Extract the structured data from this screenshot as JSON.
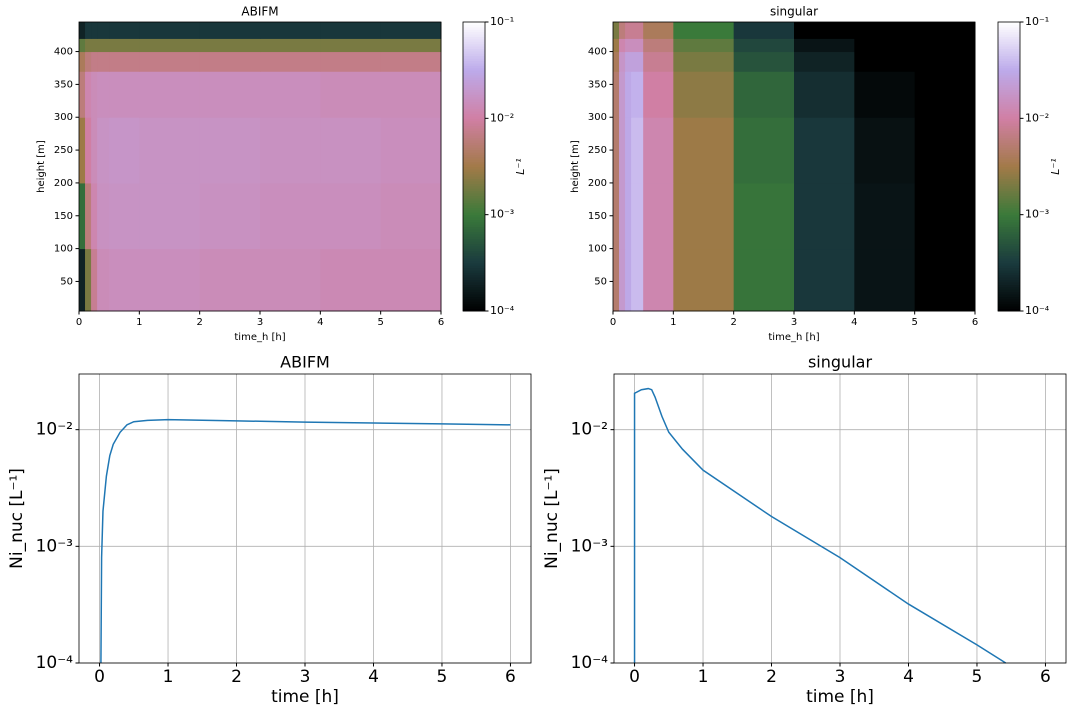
{
  "chart_data": [
    {
      "type": "heatmap",
      "title": "ABIFM",
      "x_label": "time_h [h]",
      "y_label": "height [m]",
      "colorbar_label": "L⁻¹",
      "xlim": [
        0,
        6
      ],
      "xticks": [
        0,
        1,
        2,
        3,
        4,
        5,
        6
      ],
      "ylim": [
        5,
        445
      ],
      "yticks": [
        50,
        100,
        150,
        200,
        250,
        300,
        350,
        400
      ],
      "x_edges": [
        0,
        0.1,
        0.2,
        0.3,
        0.5,
        1,
        2,
        3,
        4,
        5,
        6
      ],
      "y_edges": [
        5,
        100,
        200,
        300,
        370,
        400,
        420,
        445
      ],
      "values": [
        [
          0.0002,
          0.002,
          0.008,
          0.014,
          0.015,
          0.015,
          0.014,
          0.014,
          0.013,
          0.013
        ],
        [
          0.0008,
          0.006,
          0.012,
          0.016,
          0.017,
          0.017,
          0.016,
          0.015,
          0.015,
          0.014
        ],
        [
          0.003,
          0.01,
          0.014,
          0.017,
          0.018,
          0.017,
          0.017,
          0.016,
          0.016,
          0.015
        ],
        [
          0.006,
          0.012,
          0.014,
          0.015,
          0.015,
          0.015,
          0.015,
          0.015,
          0.014,
          0.014
        ],
        [
          0.004,
          0.006,
          0.007,
          0.007,
          0.007,
          0.007,
          0.007,
          0.007,
          0.007,
          0.007
        ],
        [
          0.0015,
          0.002,
          0.002,
          0.002,
          0.002,
          0.002,
          0.002,
          0.002,
          0.002,
          0.002
        ],
        [
          0.0002,
          0.0003,
          0.0003,
          0.0003,
          0.0003,
          0.0003,
          0.0003,
          0.0003,
          0.0003,
          0.0003
        ]
      ],
      "zlim": [
        0.0001,
        0.1
      ],
      "log_color": true,
      "zticks": [
        {
          "value": 0.0001,
          "label": "10⁻⁴"
        },
        {
          "value": 0.001,
          "label": "10⁻³"
        },
        {
          "value": 0.01,
          "label": "10⁻²"
        },
        {
          "value": 0.1,
          "label": "10⁻¹"
        }
      ],
      "colormap": [
        "#000000",
        "#1a3a3e",
        "#3a7a3a",
        "#a27a48",
        "#d07fa4",
        "#bcaaea",
        "#ffffff"
      ]
    },
    {
      "type": "heatmap",
      "title": "singular",
      "x_label": "time_h [h]",
      "y_label": "height [m]",
      "colorbar_label": "L⁻¹",
      "xlim": [
        0,
        6
      ],
      "xticks": [
        0,
        1,
        2,
        3,
        4,
        5,
        6
      ],
      "ylim": [
        5,
        445
      ],
      "yticks": [
        50,
        100,
        150,
        200,
        250,
        300,
        350,
        400
      ],
      "x_edges": [
        0,
        0.1,
        0.2,
        0.3,
        0.5,
        1,
        2,
        3,
        4,
        5,
        6
      ],
      "y_edges": [
        5,
        100,
        200,
        300,
        370,
        400,
        420,
        445
      ],
      "values": [
        [
          0.005,
          0.02,
          0.03,
          0.04,
          0.012,
          0.003,
          0.0009,
          0.0003,
          0.00015,
          0.0001
        ],
        [
          0.005,
          0.02,
          0.03,
          0.04,
          0.012,
          0.003,
          0.0009,
          0.0003,
          0.00015,
          0.0001
        ],
        [
          0.005,
          0.02,
          0.03,
          0.04,
          0.012,
          0.003,
          0.0008,
          0.0003,
          0.00014,
          0.0001
        ],
        [
          0.005,
          0.02,
          0.03,
          0.035,
          0.01,
          0.0025,
          0.0007,
          0.00025,
          0.00012,
          0.0001
        ],
        [
          0.004,
          0.018,
          0.025,
          0.025,
          0.008,
          0.002,
          0.0005,
          0.0002,
          0.0001,
          0.0001
        ],
        [
          0.003,
          0.012,
          0.015,
          0.015,
          0.006,
          0.0015,
          0.0004,
          0.00015,
          0.0001,
          0.0001
        ],
        [
          0.002,
          0.006,
          0.008,
          0.008,
          0.004,
          0.001,
          0.0003,
          0.0001,
          0.0001,
          0.0001
        ]
      ],
      "zlim": [
        0.0001,
        0.1
      ],
      "log_color": true,
      "zticks": [
        {
          "value": 0.0001,
          "label": "10⁻⁴"
        },
        {
          "value": 0.001,
          "label": "10⁻³"
        },
        {
          "value": 0.01,
          "label": "10⁻²"
        },
        {
          "value": 0.1,
          "label": "10⁻¹"
        }
      ],
      "colormap": [
        "#000000",
        "#1a3a3e",
        "#3a7a3a",
        "#a27a48",
        "#d07fa4",
        "#bcaaea",
        "#ffffff"
      ]
    },
    {
      "type": "line",
      "title": "ABIFM",
      "x_label": "time [h]",
      "y_label": "Ni_nuc [L⁻¹]",
      "color": "#1f77b4",
      "grid": true,
      "log_y": true,
      "xlim": [
        -0.3,
        6.3
      ],
      "xticks": [
        0,
        1,
        2,
        3,
        4,
        5,
        6
      ],
      "ylim": [
        0.0001,
        0.03
      ],
      "yticks": [
        {
          "value": 0.0001,
          "label": "10⁻⁴"
        },
        {
          "value": 0.001,
          "label": "10⁻³"
        },
        {
          "value": 0.01,
          "label": "10⁻²"
        }
      ],
      "x": [
        0.02,
        0.03,
        0.05,
        0.1,
        0.15,
        0.2,
        0.3,
        0.4,
        0.5,
        0.7,
        1,
        2,
        3,
        4,
        5,
        6
      ],
      "values": [
        0.0001,
        0.0008,
        0.002,
        0.004,
        0.006,
        0.0075,
        0.0095,
        0.011,
        0.0117,
        0.012,
        0.0122,
        0.0119,
        0.0116,
        0.0114,
        0.0112,
        0.011
      ]
    },
    {
      "type": "line",
      "title": "singular",
      "x_label": "time [h]",
      "y_label": "Ni_nuc [L⁻¹]",
      "color": "#1f77b4",
      "grid": true,
      "log_y": true,
      "xlim": [
        -0.3,
        6.3
      ],
      "xticks": [
        0,
        1,
        2,
        3,
        4,
        5,
        6
      ],
      "ylim": [
        0.0001,
        0.03
      ],
      "yticks": [
        {
          "value": 0.0001,
          "label": "10⁻⁴"
        },
        {
          "value": 0.001,
          "label": "10⁻³"
        },
        {
          "value": 0.01,
          "label": "10⁻²"
        }
      ],
      "x": [
        0,
        0,
        0.1,
        0.2,
        0.25,
        0.3,
        0.4,
        0.5,
        0.7,
        1,
        2,
        3,
        4,
        5,
        5.42
      ],
      "values": [
        0.0001,
        0.0205,
        0.022,
        0.0225,
        0.022,
        0.019,
        0.013,
        0.0095,
        0.0068,
        0.0045,
        0.0018,
        0.0008,
        0.00032,
        0.000143,
        0.0001
      ]
    }
  ]
}
